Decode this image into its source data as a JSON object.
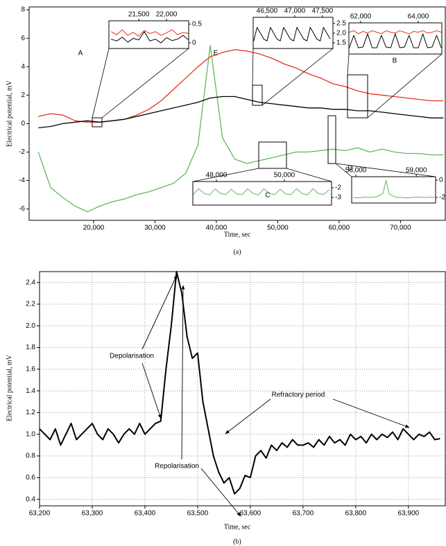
{
  "chart_data": [
    {
      "type": "line",
      "xlabel": "Time, sec",
      "ylabel": "Electrical potential, mV",
      "caption": "(a)",
      "grid": false,
      "xlim": [
        9500,
        77300
      ],
      "ylim": [
        -6.8,
        8.2
      ],
      "xticks": [
        {
          "value": 20000,
          "label": "20,000"
        },
        {
          "value": 30000,
          "label": "30,000"
        },
        {
          "value": 40000,
          "label": "40,000"
        },
        {
          "value": 50000,
          "label": "50,000"
        },
        {
          "value": 60000,
          "label": "60,000"
        },
        {
          "value": 70000,
          "label": "70,000"
        }
      ],
      "yticks": [
        -6,
        -4,
        -2,
        0,
        2,
        4,
        6,
        8
      ],
      "annotations": [
        "A",
        "E",
        "B",
        "C",
        "D"
      ],
      "x": [
        11000,
        13000,
        15000,
        17000,
        19000,
        21000,
        23000,
        25000,
        27000,
        29000,
        31000,
        33000,
        35000,
        37000,
        39000,
        41000,
        43000,
        45000,
        47000,
        49000,
        51000,
        53000,
        55000,
        57000,
        59000,
        61000,
        63000,
        65000,
        67000,
        69000,
        71000,
        73000,
        75000,
        77000
      ],
      "series": [
        {
          "color": "#5fb85a",
          "values": [
            -2.0,
            -4.5,
            -5.2,
            -5.8,
            -6.2,
            -5.8,
            -5.5,
            -5.3,
            -5.0,
            -4.8,
            -4.5,
            -4.2,
            -3.5,
            -1.5,
            5.5,
            -1.0,
            -2.5,
            -2.8,
            -2.6,
            -2.4,
            -2.2,
            -2.0,
            -2.0,
            -1.9,
            -1.8,
            -1.9,
            -1.7,
            -2.0,
            -1.8,
            -2.0,
            -2.1,
            -2.1,
            -2.2,
            -2.2
          ]
        },
        {
          "color": "#e8311a",
          "values": [
            0.5,
            0.7,
            0.6,
            0.2,
            0.1,
            0.1,
            0.2,
            0.3,
            0.6,
            1.0,
            1.6,
            2.4,
            3.2,
            4.0,
            4.7,
            5.0,
            5.2,
            5.1,
            4.9,
            4.6,
            4.2,
            3.9,
            3.5,
            3.2,
            2.8,
            2.6,
            2.3,
            2.1,
            2.0,
            1.9,
            1.8,
            1.7,
            1.6,
            1.6
          ]
        },
        {
          "color": "#000000",
          "values": [
            -0.3,
            -0.2,
            0.0,
            0.1,
            0.2,
            0.1,
            0.2,
            0.3,
            0.5,
            0.7,
            0.9,
            1.1,
            1.3,
            1.5,
            1.8,
            1.9,
            1.9,
            1.7,
            1.5,
            1.4,
            1.3,
            1.2,
            1.1,
            1.1,
            1.0,
            1.0,
            0.9,
            0.9,
            0.8,
            0.7,
            0.6,
            0.5,
            0.4,
            0.4
          ]
        }
      ],
      "insets": [
        {
          "xlim": [
            20960,
            22400
          ],
          "ylim": [
            -0.15,
            0.59
          ],
          "xticks": [
            {
              "value": 21500,
              "label": "21,500"
            },
            {
              "value": 22000,
              "label": "22,000"
            }
          ],
          "yticks": [
            0,
            0.5
          ],
          "x": [
            21000,
            21100,
            21200,
            21300,
            21400,
            21500,
            21600,
            21700,
            21800,
            21900,
            22000,
            22100,
            22200,
            22300,
            22400
          ],
          "series": [
            {
              "color": "#000000",
              "values": [
                0.1,
                0.05,
                0.15,
                0.02,
                0.12,
                0.08,
                0.3,
                0.05,
                0.1,
                0.0,
                0.14,
                0.06,
                0.1,
                0.2,
                0.08
              ]
            },
            {
              "color": "#e8311a",
              "values": [
                0.3,
                0.22,
                0.35,
                0.2,
                0.28,
                0.18,
                0.33,
                0.25,
                0.3,
                0.2,
                0.27,
                0.35,
                0.22,
                0.28,
                0.25
              ]
            }
          ]
        },
        {
          "xlim": [
            46250,
            47690
          ],
          "ylim": [
            1.21,
            2.82
          ],
          "xticks": [
            {
              "value": 46500,
              "label": "46,500"
            },
            {
              "value": 47000,
              "label": "47,000"
            },
            {
              "value": 47500,
              "label": "47,500"
            }
          ],
          "yticks": [
            1.5,
            {
              "value": 2,
              "label": "2.0"
            },
            2.5
          ],
          "x": [
            46260,
            46320,
            46380,
            46440,
            46500,
            46560,
            46620,
            46680,
            46740,
            46800,
            46860,
            46920,
            46980,
            47040,
            47100,
            47160,
            47220,
            47280,
            47340,
            47400,
            47460,
            47520,
            47580,
            47640
          ],
          "series": [
            {
              "color": "#000000",
              "values": [
                1.6,
                2.3,
                2.0,
                1.7,
                1.6,
                2.3,
                2.0,
                1.7,
                1.6,
                2.3,
                2.0,
                1.7,
                1.6,
                2.3,
                2.0,
                1.7,
                1.6,
                2.3,
                2.0,
                1.7,
                1.6,
                2.3,
                2.0,
                1.7
              ]
            }
          ]
        },
        {
          "xlim": [
            61590,
            64820
          ],
          "ylim": [
            0.5,
            2.5
          ],
          "xticks": [
            {
              "value": 62000,
              "label": "62,000"
            },
            {
              "value": 64000,
              "label": "64,000"
            }
          ],
          "yticks": [],
          "x": [
            61600,
            61760,
            61920,
            62080,
            62240,
            62400,
            62560,
            62720,
            62880,
            63040,
            63200,
            63360,
            63520,
            63680,
            63840,
            64000,
            64160,
            64320,
            64480,
            64640,
            64800
          ],
          "series": [
            {
              "color": "#e8311a",
              "values": [
                1.9,
                2.0,
                1.8,
                1.95,
                1.85,
                2.0,
                1.9,
                1.8,
                2.0,
                1.9,
                1.85,
                2.0,
                1.9,
                1.8,
                1.95,
                1.9,
                2.0,
                1.85,
                1.9,
                2.0,
                1.9
              ]
            },
            {
              "color": "#000000",
              "values": [
                0.9,
                1.7,
                0.9,
                0.95,
                1.8,
                0.9,
                0.9,
                1.7,
                0.95,
                0.9,
                1.8,
                0.9,
                0.95,
                1.7,
                0.9,
                0.9,
                1.8,
                0.9,
                0.95,
                1.7,
                0.9
              ]
            }
          ]
        },
        {
          "xlim": [
            47306,
            51390
          ],
          "ylim": [
            -3.79,
            -1.36
          ],
          "xticks": [
            {
              "value": 48000,
              "label": "48,000"
            },
            {
              "value": 50000,
              "label": "50,000"
            }
          ],
          "yticks": [
            -2,
            -3
          ],
          "x": [
            47320,
            47480,
            47640,
            47800,
            47960,
            48120,
            48280,
            48440,
            48600,
            48760,
            48920,
            49080,
            49240,
            49400,
            49560,
            49720,
            49880,
            50040,
            50200,
            50360,
            50520,
            50680,
            50840,
            51000,
            51160,
            51320
          ],
          "series": [
            {
              "color": "#5fb85a",
              "values": [
                -2.7,
                -2.1,
                -2.6,
                -2.75,
                -2.1,
                -2.6,
                -2.7,
                -2.15,
                -2.65,
                -2.7,
                -2.1,
                -2.6,
                -2.75,
                -2.1,
                -2.6,
                -2.7,
                -2.15,
                -2.65,
                -2.7,
                -2.1,
                -2.6,
                -2.75,
                -2.1,
                -2.6,
                -2.7,
                -2.2
              ]
            }
          ]
        },
        {
          "xlim": [
            57930,
            59320
          ],
          "ylim": [
            -2.64,
            0.4
          ],
          "xticks": [
            {
              "value": 58000,
              "label": "58,000"
            },
            {
              "value": 59000,
              "label": "59,000"
            }
          ],
          "yticks": [
            0,
            -2
          ],
          "x": [
            57950,
            58050,
            58150,
            58250,
            58350,
            58450,
            58500,
            58550,
            58650,
            58750,
            58850,
            59000,
            59150,
            59300
          ],
          "series": [
            {
              "color": "#5fb85a",
              "values": [
                -2.0,
                -2.05,
                -1.95,
                -2.0,
                -1.9,
                -1.5,
                0.0,
                -1.6,
                -1.95,
                -2.0,
                -2.05,
                -1.95,
                -2.0,
                -1.95
              ]
            }
          ]
        }
      ]
    },
    {
      "type": "line",
      "xlabel": "Time, sec",
      "ylabel": "Electrical potential, mV",
      "caption": "(b)",
      "grid": true,
      "xlim": [
        63200,
        63970
      ],
      "ylim": [
        0.34,
        2.5
      ],
      "xticks": [
        {
          "value": 63200,
          "label": "63,200"
        },
        {
          "value": 63300,
          "label": "63,300"
        },
        {
          "value": 63400,
          "label": "63,400"
        },
        {
          "value": 63500,
          "label": "63,500"
        },
        {
          "value": 63600,
          "label": "63,600"
        },
        {
          "value": 63700,
          "label": "63,700"
        },
        {
          "value": 63800,
          "label": "63,800"
        },
        {
          "value": 63900,
          "label": "63,900"
        }
      ],
      "yticks": [
        0.4,
        0.6,
        0.8,
        {
          "value": 1,
          "label": "1.0"
        },
        1.2,
        1.4,
        1.6,
        1.8,
        {
          "value": 2,
          "label": "2.0"
        },
        2.2,
        2.4
      ],
      "annotations": [
        "Depolarisation",
        "Refractory period",
        "Repolarisation"
      ],
      "x": [
        63200,
        63210,
        63220,
        63230,
        63240,
        63250,
        63260,
        63270,
        63280,
        63290,
        63300,
        63310,
        63320,
        63330,
        63340,
        63350,
        63360,
        63370,
        63380,
        63390,
        63400,
        63410,
        63420,
        63430,
        63440,
        63450,
        63460,
        63470,
        63480,
        63490,
        63500,
        63510,
        63520,
        63530,
        63540,
        63550,
        63560,
        63570,
        63580,
        63590,
        63600,
        63610,
        63620,
        63630,
        63640,
        63650,
        63660,
        63670,
        63680,
        63690,
        63700,
        63710,
        63720,
        63730,
        63740,
        63750,
        63760,
        63770,
        63780,
        63790,
        63800,
        63810,
        63820,
        63830,
        63840,
        63850,
        63860,
        63870,
        63880,
        63890,
        63900,
        63910,
        63920,
        63930,
        63940,
        63950,
        63960
      ],
      "series": [
        {
          "color": "#000000",
          "values": [
            1.05,
            1.0,
            0.95,
            1.05,
            0.9,
            1.0,
            1.1,
            0.95,
            1.0,
            1.05,
            1.1,
            1.0,
            0.95,
            1.05,
            1.0,
            0.92,
            1.0,
            1.05,
            1.0,
            1.1,
            1.0,
            1.05,
            1.1,
            1.12,
            1.6,
            2.0,
            2.5,
            2.3,
            1.9,
            1.7,
            1.75,
            1.3,
            1.05,
            0.8,
            0.65,
            0.55,
            0.6,
            0.45,
            0.5,
            0.62,
            0.6,
            0.8,
            0.85,
            0.78,
            0.9,
            0.85,
            0.92,
            0.88,
            0.95,
            0.9,
            0.9,
            0.92,
            0.88,
            0.95,
            0.9,
            0.98,
            0.92,
            0.95,
            0.9,
            1.0,
            0.95,
            0.98,
            0.92,
            1.0,
            0.95,
            1.0,
            0.97,
            1.02,
            0.95,
            1.05,
            1.0,
            0.95,
            1.0,
            0.98,
            1.02,
            0.95,
            0.96
          ]
        }
      ]
    }
  ]
}
